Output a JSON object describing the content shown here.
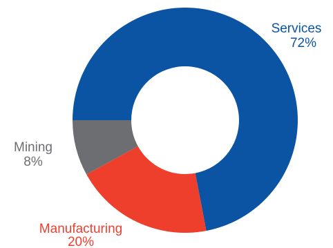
{
  "chart_data": {
    "type": "pie",
    "donut": true,
    "categories": [
      "Services",
      "Manufacturing",
      "Mining"
    ],
    "values": [
      72,
      20,
      8
    ],
    "value_labels": [
      "72%",
      "20%",
      "8%"
    ],
    "colors": [
      "#0A54A3",
      "#EE3F2D",
      "#6D6E71"
    ],
    "title": "",
    "legend": "none"
  }
}
